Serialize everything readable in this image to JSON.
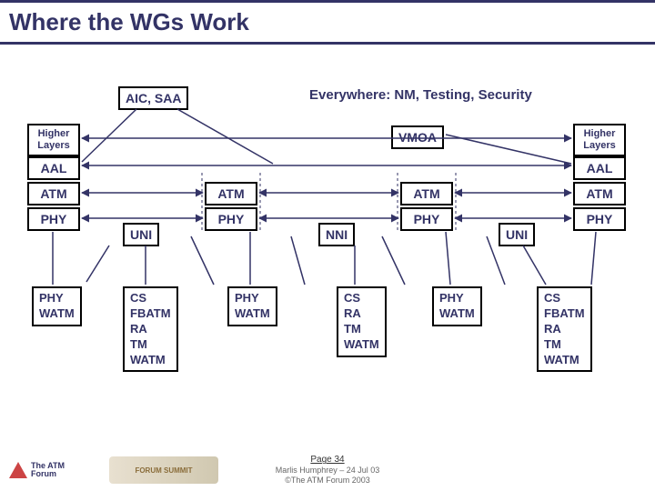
{
  "title": "Where the WGs Work",
  "top_labels": {
    "aic_saa": "AIC, SAA",
    "everywhere": "Everywhere: NM, Testing, Security",
    "vmoa": "VMOA"
  },
  "stack_left": {
    "higher_layers": "Higher\nLayers",
    "aal": "AAL",
    "atm": "ATM",
    "phy": "PHY"
  },
  "stack_right": {
    "higher_layers": "Higher\nLayers",
    "aal": "AAL",
    "atm": "ATM",
    "phy": "PHY"
  },
  "mid_stacks": {
    "atm_phy_1": {
      "atm": "ATM",
      "phy": "PHY"
    },
    "atm_phy_2": {
      "atm": "ATM",
      "phy": "PHY"
    }
  },
  "plain": {
    "uni_left": "UNI",
    "nni": "NNI",
    "uni_right": "UNI"
  },
  "bottom_boxes": {
    "phy_watm_1": "PHY\nWATM",
    "cs_fbatm_1": "CS\nFBATM\nRA\nTM\nWATM",
    "phy_watm_2": "PHY\nWATM",
    "cs_ra": "CS\nRA\nTM\nWATM",
    "phy_watm_3": "PHY\nWATM",
    "cs_fbatm_2": "CS\nFBATM\nRA\nTM\nWATM"
  },
  "footer": {
    "page": "Page 34",
    "line1": "Marlis Humphrey – 24 Jul 03",
    "line2": "©The ATM Forum 2003"
  },
  "logos": {
    "left_text": "The ATM Forum",
    "mid_text": "FORUM SUMMIT"
  },
  "colors": {
    "primary": "#333366",
    "black": "#000000"
  }
}
